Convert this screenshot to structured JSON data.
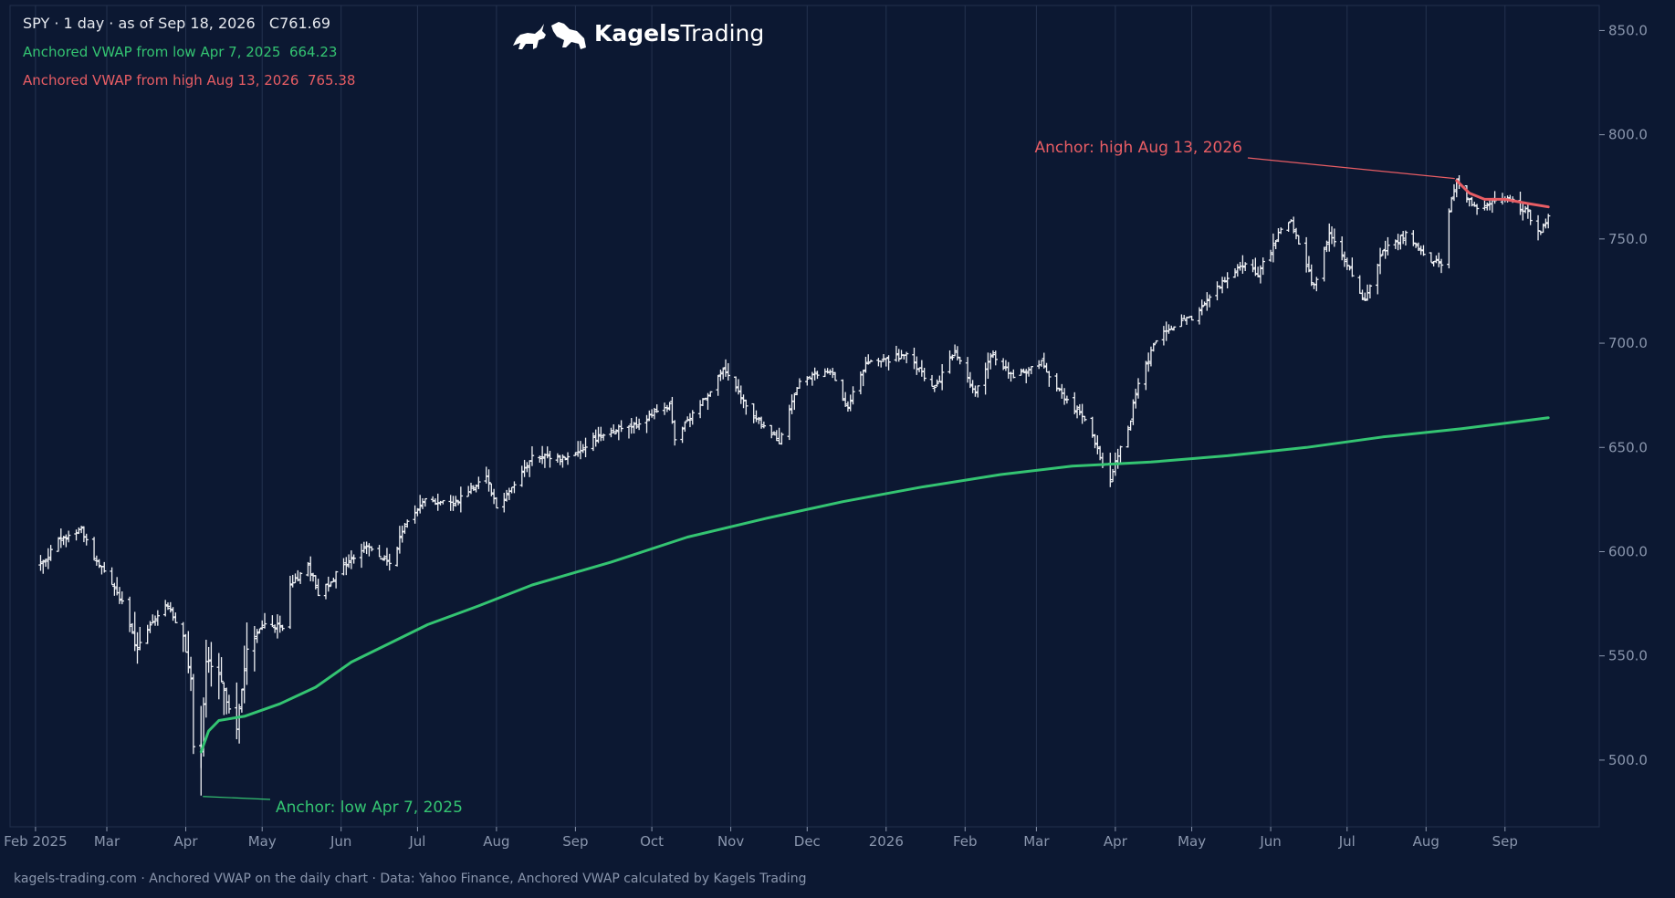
{
  "header": {
    "symbol_line": "SPY · 1 day · as of Sep 18, 2026   C761.69",
    "vwap_low_line": "Anchored VWAP from low Apr 7, 2025  664.23",
    "vwap_high_line": "Anchored VWAP from high Aug 13, 2026  765.38"
  },
  "brand": {
    "name_bold": "Kagels",
    "name_regular": "Trading",
    "logo_icon": "bull-and-bear-icon"
  },
  "footer": {
    "caption": "kagels-trading.com · Anchored VWAP on the daily chart · Data: Yahoo Finance, Anchored VWAP calculated by Kagels Trading"
  },
  "colors": {
    "background": "#0c1832",
    "price_bars": "#f0f2f6",
    "vwap_low": "#34c472",
    "vwap_high": "#e85d64",
    "axis_text": "#8a96ad",
    "grid": "#24324f"
  },
  "chart_data": {
    "type": "ohlc",
    "symbol": "SPY",
    "interval": "1 day",
    "ylim": [
      468,
      862
    ],
    "yticks": [
      500,
      550,
      600,
      650,
      700,
      750,
      800,
      850
    ],
    "ytick_labels": [
      "500.0",
      "550.0",
      "600.0",
      "650.0",
      "700.0",
      "750.0",
      "800.0",
      "850.0"
    ],
    "xlim": [
      "2025-01-22",
      "2026-10-08"
    ],
    "xticks": [
      {
        "date": "2025-02-01",
        "label": "Feb 2025"
      },
      {
        "date": "2025-03-01",
        "label": "Mar"
      },
      {
        "date": "2025-04-01",
        "label": "Apr"
      },
      {
        "date": "2025-05-01",
        "label": "May"
      },
      {
        "date": "2025-06-01",
        "label": "Jun"
      },
      {
        "date": "2025-07-01",
        "label": "Jul"
      },
      {
        "date": "2025-08-01",
        "label": "Aug"
      },
      {
        "date": "2025-09-01",
        "label": "Sep"
      },
      {
        "date": "2025-10-01",
        "label": "Oct"
      },
      {
        "date": "2025-11-01",
        "label": "Nov"
      },
      {
        "date": "2025-12-01",
        "label": "Dec"
      },
      {
        "date": "2026-01-01",
        "label": "2026"
      },
      {
        "date": "2026-02-01",
        "label": "Feb"
      },
      {
        "date": "2026-03-01",
        "label": "Mar"
      },
      {
        "date": "2026-04-01",
        "label": "Apr"
      },
      {
        "date": "2026-05-01",
        "label": "May"
      },
      {
        "date": "2026-06-01",
        "label": "Jun"
      },
      {
        "date": "2026-07-01",
        "label": "Jul"
      },
      {
        "date": "2026-08-01",
        "label": "Aug"
      },
      {
        "date": "2026-09-01",
        "label": "Sep"
      }
    ],
    "grid": "vertical",
    "price_close_path": [
      {
        "date": "2025-02-03",
        "close": 594
      },
      {
        "date": "2025-02-10",
        "close": 605
      },
      {
        "date": "2025-02-19",
        "close": 611
      },
      {
        "date": "2025-02-24",
        "close": 597
      },
      {
        "date": "2025-03-03",
        "close": 585
      },
      {
        "date": "2025-03-07",
        "close": 575
      },
      {
        "date": "2025-03-13",
        "close": 553
      },
      {
        "date": "2025-03-19",
        "close": 566
      },
      {
        "date": "2025-03-25",
        "close": 575
      },
      {
        "date": "2025-03-31",
        "close": 558
      },
      {
        "date": "2025-04-03",
        "close": 540
      },
      {
        "date": "2025-04-04",
        "close": 505
      },
      {
        "date": "2025-04-07",
        "close": 504
      },
      {
        "date": "2025-04-09",
        "close": 548
      },
      {
        "date": "2025-04-14",
        "close": 540
      },
      {
        "date": "2025-04-21",
        "close": 515
      },
      {
        "date": "2025-04-25",
        "close": 553
      },
      {
        "date": "2025-05-02",
        "close": 566
      },
      {
        "date": "2025-05-09",
        "close": 563
      },
      {
        "date": "2025-05-12",
        "close": 583
      },
      {
        "date": "2025-05-19",
        "close": 594
      },
      {
        "date": "2025-05-23",
        "close": 580
      },
      {
        "date": "2025-06-02",
        "close": 593
      },
      {
        "date": "2025-06-11",
        "close": 603
      },
      {
        "date": "2025-06-20",
        "close": 594
      },
      {
        "date": "2025-06-27",
        "close": 615
      },
      {
        "date": "2025-07-03",
        "close": 625
      },
      {
        "date": "2025-07-15",
        "close": 623
      },
      {
        "date": "2025-07-28",
        "close": 637
      },
      {
        "date": "2025-08-01",
        "close": 621
      },
      {
        "date": "2025-08-15",
        "close": 645
      },
      {
        "date": "2025-08-29",
        "close": 645
      },
      {
        "date": "2025-09-12",
        "close": 657
      },
      {
        "date": "2025-09-26",
        "close": 662
      },
      {
        "date": "2025-10-08",
        "close": 670
      },
      {
        "date": "2025-10-10",
        "close": 654
      },
      {
        "date": "2025-10-20",
        "close": 671
      },
      {
        "date": "2025-10-29",
        "close": 687
      },
      {
        "date": "2025-11-07",
        "close": 670
      },
      {
        "date": "2025-11-20",
        "close": 652
      },
      {
        "date": "2025-11-28",
        "close": 683
      },
      {
        "date": "2025-12-10",
        "close": 686
      },
      {
        "date": "2025-12-17",
        "close": 670
      },
      {
        "date": "2025-12-24",
        "close": 690
      },
      {
        "date": "2026-01-09",
        "close": 694
      },
      {
        "date": "2026-01-20",
        "close": 678
      },
      {
        "date": "2026-01-28",
        "close": 696
      },
      {
        "date": "2026-02-05",
        "close": 676
      },
      {
        "date": "2026-02-12",
        "close": 695
      },
      {
        "date": "2026-02-20",
        "close": 683
      },
      {
        "date": "2026-03-03",
        "close": 691
      },
      {
        "date": "2026-03-10",
        "close": 677
      },
      {
        "date": "2026-03-20",
        "close": 663
      },
      {
        "date": "2026-03-30",
        "close": 634
      },
      {
        "date": "2026-04-02",
        "close": 647
      },
      {
        "date": "2026-04-06",
        "close": 658
      },
      {
        "date": "2026-04-09",
        "close": 676
      },
      {
        "date": "2026-04-17",
        "close": 702
      },
      {
        "date": "2026-04-24",
        "close": 708
      },
      {
        "date": "2026-05-01",
        "close": 712
      },
      {
        "date": "2026-05-12",
        "close": 728
      },
      {
        "date": "2026-05-22",
        "close": 738
      },
      {
        "date": "2026-05-27",
        "close": 733
      },
      {
        "date": "2026-06-04",
        "close": 752
      },
      {
        "date": "2026-06-09",
        "close": 758
      },
      {
        "date": "2026-06-18",
        "close": 727
      },
      {
        "date": "2026-06-24",
        "close": 753
      },
      {
        "date": "2026-07-02",
        "close": 735
      },
      {
        "date": "2026-07-08",
        "close": 720
      },
      {
        "date": "2026-07-15",
        "close": 745
      },
      {
        "date": "2026-07-24",
        "close": 752
      },
      {
        "date": "2026-07-31",
        "close": 742
      },
      {
        "date": "2026-08-07",
        "close": 738
      },
      {
        "date": "2026-08-11",
        "close": 770
      },
      {
        "date": "2026-08-13",
        "close": 778
      },
      {
        "date": "2026-08-20",
        "close": 765
      },
      {
        "date": "2026-08-27",
        "close": 768
      },
      {
        "date": "2026-09-03",
        "close": 770
      },
      {
        "date": "2026-09-10",
        "close": 762
      },
      {
        "date": "2026-09-15",
        "close": 753
      },
      {
        "date": "2026-09-18",
        "close": 761.69
      }
    ],
    "series": [
      {
        "name": "Anchored VWAP from low Apr 7, 2025",
        "color": "#34c472",
        "points": [
          {
            "date": "2025-04-07",
            "value": 504
          },
          {
            "date": "2025-04-10",
            "value": 514
          },
          {
            "date": "2025-04-14",
            "value": 519
          },
          {
            "date": "2025-04-24",
            "value": 521
          },
          {
            "date": "2025-05-08",
            "value": 527
          },
          {
            "date": "2025-05-22",
            "value": 535
          },
          {
            "date": "2025-06-05",
            "value": 547
          },
          {
            "date": "2025-06-20",
            "value": 556
          },
          {
            "date": "2025-07-05",
            "value": 565
          },
          {
            "date": "2025-07-25",
            "value": 574
          },
          {
            "date": "2025-08-15",
            "value": 584
          },
          {
            "date": "2025-09-15",
            "value": 595
          },
          {
            "date": "2025-10-15",
            "value": 607
          },
          {
            "date": "2025-11-15",
            "value": 616
          },
          {
            "date": "2025-12-15",
            "value": 624
          },
          {
            "date": "2026-01-15",
            "value": 631
          },
          {
            "date": "2026-02-15",
            "value": 637
          },
          {
            "date": "2026-03-15",
            "value": 641
          },
          {
            "date": "2026-04-15",
            "value": 643
          },
          {
            "date": "2026-05-15",
            "value": 646
          },
          {
            "date": "2026-06-15",
            "value": 650
          },
          {
            "date": "2026-07-15",
            "value": 655
          },
          {
            "date": "2026-08-15",
            "value": 659
          },
          {
            "date": "2026-09-18",
            "value": 664.23
          }
        ]
      },
      {
        "name": "Anchored VWAP from high Aug 13, 2026",
        "color": "#e85d64",
        "points": [
          {
            "date": "2026-08-13",
            "value": 778
          },
          {
            "date": "2026-08-18",
            "value": 772
          },
          {
            "date": "2026-08-24",
            "value": 769
          },
          {
            "date": "2026-09-01",
            "value": 769
          },
          {
            "date": "2026-09-10",
            "value": 767
          },
          {
            "date": "2026-09-18",
            "value": 765.38
          }
        ]
      }
    ],
    "annotations": [
      {
        "id": "low",
        "text": "Anchor: low Apr 7, 2025",
        "date": "2025-04-07",
        "value": 483,
        "color": "#34c472"
      },
      {
        "id": "high",
        "text": "Anchor: high Aug 13, 2026",
        "date": "2026-08-13",
        "value": 779,
        "color": "#e85d64"
      }
    ]
  }
}
